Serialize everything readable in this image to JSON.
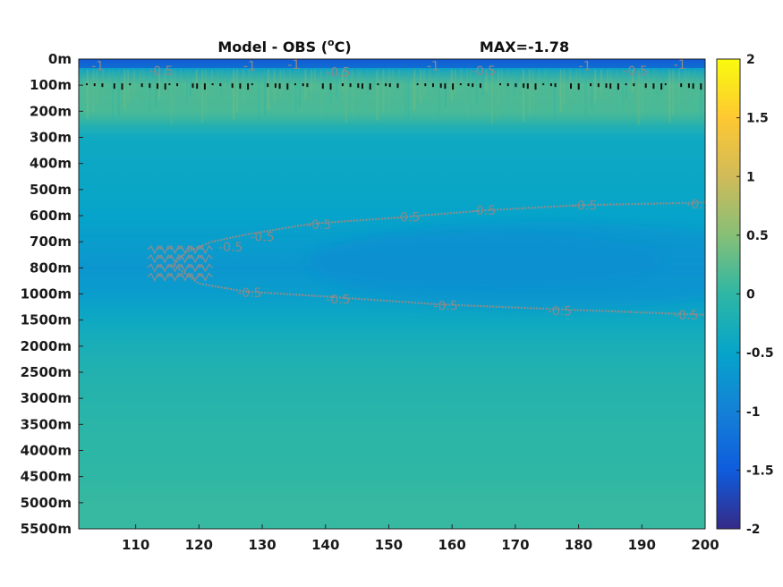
{
  "chart_data": {
    "type": "heatmap",
    "title": "Model - OBS (°C)",
    "title_parts": {
      "prefix": "Model - OBS (",
      "superscript": "o",
      "suffix": "C)"
    },
    "annotation": "MAX=-1.78",
    "x": {
      "ticks": [
        110,
        120,
        130,
        140,
        150,
        160,
        170,
        180,
        190,
        200
      ],
      "tick_labels": [
        "110",
        "120",
        "130",
        "140",
        "150",
        "160",
        "170",
        "180",
        "190",
        "200"
      ],
      "range": [
        101,
        200
      ]
    },
    "y": {
      "tick_labels": [
        "0m",
        "100m",
        "200m",
        "300m",
        "400m",
        "500m",
        "600m",
        "700m",
        "800m",
        "1000m",
        "1500m",
        "2000m",
        "2500m",
        "3000m",
        "3500m",
        "4000m",
        "4500m",
        "5000m",
        "5500m"
      ],
      "note": "non-uniform depth axis, labels evenly spaced, depth increasing downward"
    },
    "colorbar": {
      "range": [
        -2,
        2
      ],
      "ticks": [
        2,
        1.5,
        1,
        0.5,
        0,
        -0.5,
        -1,
        -1.5,
        -2
      ],
      "tick_labels": [
        "2",
        "1.5",
        "1",
        "0.5",
        "0",
        "-0.5",
        "-1",
        "-1.5",
        "-2"
      ],
      "colormap": "parula",
      "colors": [
        "#352a87",
        "#0f5cdd",
        "#1481d6",
        "#06a4ca",
        "#2eb7a4",
        "#87bf77",
        "#d1bb59",
        "#fec832",
        "#f9fb0e"
      ]
    },
    "depth_profile": {
      "description": "approximate value of Model - OBS by depth level (y-axis label index)",
      "levels": [
        0,
        0.3,
        1,
        2,
        3,
        4,
        5,
        6,
        7,
        8,
        9,
        10,
        11,
        12,
        13,
        14,
        15,
        16,
        17,
        18
      ],
      "values": [
        -1.4,
        -0.6,
        0.15,
        0.1,
        -0.38,
        -0.42,
        -0.45,
        -0.5,
        -0.6,
        -0.7,
        -0.6,
        -0.4,
        -0.25,
        -0.15,
        -0.1,
        -0.05,
        -0.02,
        0.0,
        0.05,
        0.05
      ]
    },
    "contours": [
      {
        "level": -0.5,
        "label": "-0.5",
        "description": "upper branch near 600m rising from x~122 to x~200",
        "points": [
          [
            200,
            5.5
          ],
          [
            180,
            5.6
          ],
          [
            165,
            5.8
          ],
          [
            150,
            6.1
          ],
          [
            138,
            6.3
          ],
          [
            128,
            6.7
          ],
          [
            122,
            7.0
          ],
          [
            118,
            7.4
          ],
          [
            116,
            7.9
          ]
        ]
      },
      {
        "level": -0.5,
        "label": "-0.5",
        "description": "lower branch near 1000-1500m",
        "points": [
          [
            116,
            7.9
          ],
          [
            120,
            8.6
          ],
          [
            127,
            8.9
          ],
          [
            140,
            9.1
          ],
          [
            158,
            9.4
          ],
          [
            178,
            9.6
          ],
          [
            200,
            9.8
          ]
        ]
      }
    ],
    "contour_labels": [
      {
        "text": "-0.5",
        "x": 199,
        "y": 5.55
      },
      {
        "text": "-0.5",
        "x": 181,
        "y": 5.6
      },
      {
        "text": "-0.5",
        "x": 165,
        "y": 5.8
      },
      {
        "text": "-0.5",
        "x": 153,
        "y": 6.05
      },
      {
        "text": "-0.5",
        "x": 139,
        "y": 6.35
      },
      {
        "text": "-0.5",
        "x": 130,
        "y": 6.8
      },
      {
        "text": "-0.5",
        "x": 125,
        "y": 7.2
      },
      {
        "text": "-0.5",
        "x": 128,
        "y": 8.95
      },
      {
        "text": "-0.5",
        "x": 142,
        "y": 9.2
      },
      {
        "text": "-0.5",
        "x": 159,
        "y": 9.45
      },
      {
        "text": "-0.5",
        "x": 177,
        "y": 9.65
      },
      {
        "text": "-0.5",
        "x": 197,
        "y": 9.8
      },
      {
        "text": "-1",
        "x": 104,
        "y": 0.25
      },
      {
        "text": "-0.5",
        "x": 114,
        "y": 0.45
      },
      {
        "text": "-1",
        "x": 128,
        "y": 0.25
      },
      {
        "text": "-1",
        "x": 135,
        "y": 0.2
      },
      {
        "text": "-0.5",
        "x": 142,
        "y": 0.5
      },
      {
        "text": "-1",
        "x": 157,
        "y": 0.25
      },
      {
        "text": "-0.5",
        "x": 165,
        "y": 0.45
      },
      {
        "text": "-1",
        "x": 181,
        "y": 0.25
      },
      {
        "text": "-0.5",
        "x": 189,
        "y": 0.45
      },
      {
        "text": "-1",
        "x": 196,
        "y": 0.2
      }
    ],
    "grid": false,
    "legend": "colorbar-right"
  }
}
